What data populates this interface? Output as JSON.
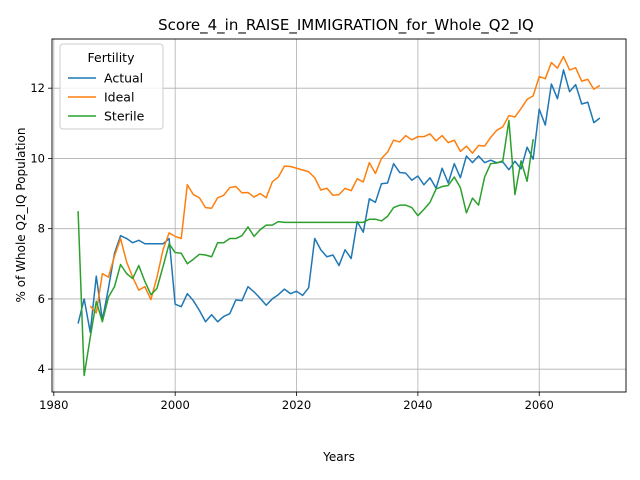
{
  "chart_data": {
    "type": "line",
    "title": "Score_4_in_RAISE_IMMIGRATION_for_Whole_Q2_IQ",
    "xlabel": "Years",
    "ylabel": "% of Whole Q2_IQ Population",
    "xlim": [
      1979.7,
      2074.3
    ],
    "ylim": [
      3.35,
      13.4
    ],
    "xticks": [
      1980,
      2000,
      2020,
      2040,
      2060
    ],
    "yticks": [
      4,
      6,
      8,
      10,
      12
    ],
    "grid": true,
    "legend": {
      "title": "Fertility",
      "position": "top-left"
    },
    "series": [
      {
        "name": "Actual",
        "color": "#1f77b4",
        "points": [
          [
            1984,
            5.3
          ],
          [
            1985,
            6.0
          ],
          [
            1986,
            5.05
          ],
          [
            1987,
            6.65
          ],
          [
            1988,
            5.4
          ],
          [
            1989,
            6.3
          ],
          [
            1990,
            7.3
          ],
          [
            1991,
            7.8
          ],
          [
            1992,
            7.72
          ],
          [
            1993,
            7.6
          ],
          [
            1994,
            7.67
          ],
          [
            1995,
            7.57
          ],
          [
            1996,
            7.57
          ],
          [
            1997,
            7.57
          ],
          [
            1998,
            7.57
          ],
          [
            1999,
            7.72
          ],
          [
            2000,
            5.85
          ],
          [
            2001,
            5.78
          ],
          [
            2002,
            6.15
          ],
          [
            2003,
            5.95
          ],
          [
            2004,
            5.67
          ],
          [
            2005,
            5.35
          ],
          [
            2006,
            5.55
          ],
          [
            2007,
            5.35
          ],
          [
            2008,
            5.5
          ],
          [
            2009,
            5.58
          ],
          [
            2010,
            5.97
          ],
          [
            2011,
            5.95
          ],
          [
            2012,
            6.35
          ],
          [
            2013,
            6.2
          ],
          [
            2014,
            6.02
          ],
          [
            2015,
            5.82
          ],
          [
            2016,
            6.0
          ],
          [
            2017,
            6.12
          ],
          [
            2018,
            6.28
          ],
          [
            2019,
            6.15
          ],
          [
            2020,
            6.22
          ],
          [
            2021,
            6.1
          ],
          [
            2022,
            6.32
          ],
          [
            2023,
            7.72
          ],
          [
            2024,
            7.4
          ],
          [
            2025,
            7.2
          ],
          [
            2026,
            7.25
          ],
          [
            2027,
            6.95
          ],
          [
            2028,
            7.4
          ],
          [
            2029,
            7.15
          ],
          [
            2030,
            8.2
          ],
          [
            2031,
            7.9
          ],
          [
            2032,
            8.85
          ],
          [
            2033,
            8.75
          ],
          [
            2034,
            9.28
          ],
          [
            2035,
            9.3
          ],
          [
            2036,
            9.85
          ],
          [
            2037,
            9.6
          ],
          [
            2038,
            9.58
          ],
          [
            2039,
            9.38
          ],
          [
            2040,
            9.5
          ],
          [
            2041,
            9.25
          ],
          [
            2042,
            9.45
          ],
          [
            2043,
            9.15
          ],
          [
            2044,
            9.72
          ],
          [
            2045,
            9.3
          ],
          [
            2046,
            9.85
          ],
          [
            2047,
            9.45
          ],
          [
            2048,
            10.07
          ],
          [
            2049,
            9.88
          ],
          [
            2050,
            10.07
          ],
          [
            2051,
            9.88
          ],
          [
            2052,
            9.95
          ],
          [
            2053,
            9.88
          ],
          [
            2054,
            9.9
          ],
          [
            2055,
            9.68
          ],
          [
            2056,
            9.92
          ],
          [
            2057,
            9.7
          ],
          [
            2058,
            10.32
          ],
          [
            2059,
            9.98
          ],
          [
            2060,
            11.4
          ],
          [
            2061,
            10.95
          ],
          [
            2062,
            12.12
          ],
          [
            2063,
            11.7
          ],
          [
            2064,
            12.52
          ],
          [
            2065,
            11.9
          ],
          [
            2066,
            12.1
          ],
          [
            2067,
            11.55
          ],
          [
            2068,
            11.6
          ],
          [
            2069,
            11.02
          ],
          [
            2070,
            11.15
          ]
        ]
      },
      {
        "name": "Ideal",
        "color": "#ff7f0e",
        "points": [
          [
            1986,
            5.8
          ],
          [
            1987,
            5.6
          ],
          [
            1988,
            6.72
          ],
          [
            1989,
            6.62
          ],
          [
            1990,
            7.22
          ],
          [
            1991,
            7.72
          ],
          [
            1992,
            7.05
          ],
          [
            1993,
            6.62
          ],
          [
            1994,
            6.25
          ],
          [
            1995,
            6.35
          ],
          [
            1996,
            5.98
          ],
          [
            1997,
            6.62
          ],
          [
            1998,
            7.4
          ],
          [
            1999,
            7.88
          ],
          [
            2000,
            7.78
          ],
          [
            2001,
            7.72
          ],
          [
            2002,
            9.25
          ],
          [
            2003,
            8.97
          ],
          [
            2004,
            8.88
          ],
          [
            2005,
            8.6
          ],
          [
            2006,
            8.58
          ],
          [
            2007,
            8.88
          ],
          [
            2008,
            8.95
          ],
          [
            2009,
            9.17
          ],
          [
            2010,
            9.2
          ],
          [
            2011,
            9.02
          ],
          [
            2012,
            9.03
          ],
          [
            2013,
            8.9
          ],
          [
            2014,
            9.0
          ],
          [
            2015,
            8.88
          ],
          [
            2016,
            9.33
          ],
          [
            2017,
            9.47
          ],
          [
            2018,
            9.78
          ],
          [
            2019,
            9.77
          ],
          [
            2020,
            9.72
          ],
          [
            2021,
            9.67
          ],
          [
            2022,
            9.62
          ],
          [
            2023,
            9.45
          ],
          [
            2024,
            9.1
          ],
          [
            2025,
            9.15
          ],
          [
            2026,
            8.95
          ],
          [
            2027,
            8.97
          ],
          [
            2028,
            9.15
          ],
          [
            2029,
            9.08
          ],
          [
            2030,
            9.42
          ],
          [
            2031,
            9.33
          ],
          [
            2032,
            9.88
          ],
          [
            2033,
            9.57
          ],
          [
            2034,
            10.0
          ],
          [
            2035,
            10.18
          ],
          [
            2036,
            10.52
          ],
          [
            2037,
            10.47
          ],
          [
            2038,
            10.65
          ],
          [
            2039,
            10.53
          ],
          [
            2040,
            10.62
          ],
          [
            2041,
            10.62
          ],
          [
            2042,
            10.7
          ],
          [
            2043,
            10.5
          ],
          [
            2044,
            10.65
          ],
          [
            2045,
            10.45
          ],
          [
            2046,
            10.52
          ],
          [
            2047,
            10.2
          ],
          [
            2048,
            10.35
          ],
          [
            2049,
            10.15
          ],
          [
            2050,
            10.37
          ],
          [
            2051,
            10.35
          ],
          [
            2052,
            10.6
          ],
          [
            2053,
            10.8
          ],
          [
            2054,
            10.9
          ],
          [
            2055,
            11.22
          ],
          [
            2056,
            11.18
          ],
          [
            2057,
            11.42
          ],
          [
            2058,
            11.68
          ],
          [
            2059,
            11.78
          ],
          [
            2060,
            12.33
          ],
          [
            2061,
            12.27
          ],
          [
            2062,
            12.73
          ],
          [
            2063,
            12.57
          ],
          [
            2064,
            12.9
          ],
          [
            2065,
            12.52
          ],
          [
            2066,
            12.58
          ],
          [
            2067,
            12.2
          ],
          [
            2068,
            12.25
          ],
          [
            2069,
            11.97
          ],
          [
            2070,
            12.08
          ]
        ]
      },
      {
        "name": "Sterile",
        "color": "#2ca02c",
        "points": [
          [
            1984,
            8.5
          ],
          [
            1985,
            3.82
          ],
          [
            1986,
            4.9
          ],
          [
            1987,
            5.93
          ],
          [
            1988,
            5.35
          ],
          [
            1989,
            6.05
          ],
          [
            1990,
            6.35
          ],
          [
            1991,
            6.98
          ],
          [
            1992,
            6.72
          ],
          [
            1993,
            6.58
          ],
          [
            1994,
            6.95
          ],
          [
            1995,
            6.5
          ],
          [
            1996,
            6.12
          ],
          [
            1997,
            6.3
          ],
          [
            1998,
            6.92
          ],
          [
            1999,
            7.57
          ],
          [
            2000,
            7.32
          ],
          [
            2001,
            7.3
          ],
          [
            2002,
            7.0
          ],
          [
            2003,
            7.13
          ],
          [
            2004,
            7.27
          ],
          [
            2005,
            7.25
          ],
          [
            2006,
            7.2
          ],
          [
            2007,
            7.6
          ],
          [
            2008,
            7.6
          ],
          [
            2009,
            7.72
          ],
          [
            2010,
            7.72
          ],
          [
            2011,
            7.8
          ],
          [
            2012,
            8.05
          ],
          [
            2013,
            7.78
          ],
          [
            2014,
            7.97
          ],
          [
            2015,
            8.1
          ],
          [
            2016,
            8.1
          ],
          [
            2017,
            8.2
          ],
          [
            2018,
            8.18
          ],
          [
            2019,
            8.18
          ],
          [
            2020,
            8.18
          ],
          [
            2021,
            8.18
          ],
          [
            2022,
            8.18
          ],
          [
            2023,
            8.18
          ],
          [
            2024,
            8.18
          ],
          [
            2025,
            8.18
          ],
          [
            2026,
            8.18
          ],
          [
            2027,
            8.18
          ],
          [
            2028,
            8.18
          ],
          [
            2029,
            8.18
          ],
          [
            2030,
            8.18
          ],
          [
            2031,
            8.18
          ],
          [
            2032,
            8.27
          ],
          [
            2033,
            8.27
          ],
          [
            2034,
            8.22
          ],
          [
            2035,
            8.35
          ],
          [
            2036,
            8.6
          ],
          [
            2037,
            8.67
          ],
          [
            2038,
            8.67
          ],
          [
            2039,
            8.6
          ],
          [
            2040,
            8.37
          ],
          [
            2041,
            8.55
          ],
          [
            2042,
            8.75
          ],
          [
            2043,
            9.13
          ],
          [
            2044,
            9.2
          ],
          [
            2045,
            9.23
          ],
          [
            2046,
            9.47
          ],
          [
            2047,
            9.17
          ],
          [
            2048,
            8.45
          ],
          [
            2049,
            8.87
          ],
          [
            2050,
            8.67
          ],
          [
            2051,
            9.47
          ],
          [
            2052,
            9.85
          ],
          [
            2053,
            9.87
          ],
          [
            2054,
            9.93
          ],
          [
            2055,
            11.08
          ],
          [
            2056,
            8.97
          ],
          [
            2057,
            9.93
          ],
          [
            2058,
            9.35
          ],
          [
            2059,
            10.55
          ]
        ]
      }
    ]
  }
}
